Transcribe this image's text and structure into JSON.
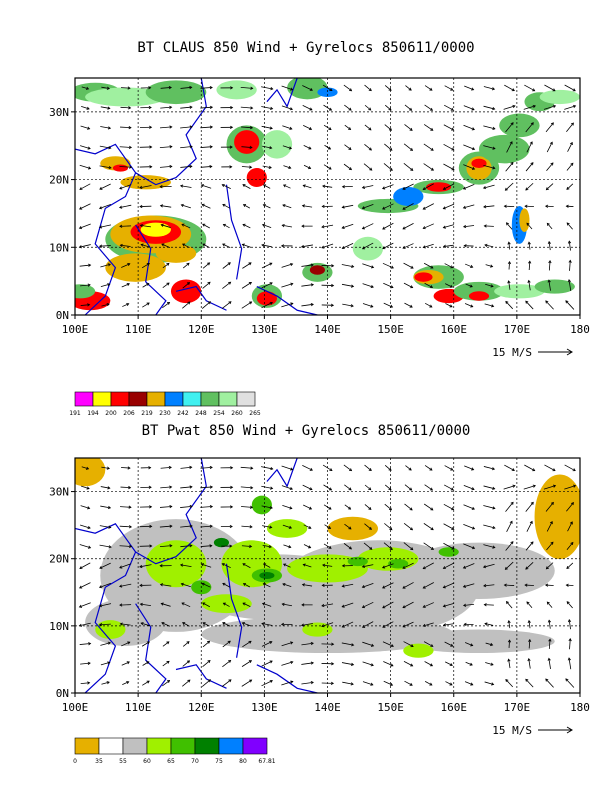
{
  "panels": [
    {
      "title": "BT CLAUS 850 Wind + Gyrelocs 850611/0000",
      "lon_ticks": [
        "100E",
        "110E",
        "120E",
        "130E",
        "140E",
        "150E",
        "160E",
        "170E",
        "180"
      ],
      "lat_ticks": [
        "0N",
        "10N",
        "20N",
        "30N"
      ],
      "reference_vector": "15 M/S",
      "legend": {
        "labels": [
          "191",
          "194",
          "200",
          "206",
          "219",
          "230",
          "242",
          "248",
          "254",
          "260",
          "265"
        ],
        "colors": [
          "#ff00ff",
          "#ffff00",
          "#ff0000",
          "#990000",
          "#e6b000",
          "#0080ff",
          "#40f0f0",
          "#60c060",
          "#a0f0a0",
          "#e0e0e0"
        ]
      }
    },
    {
      "title": "BT Pwat 850 Wind + Gyrelocs 850611/0000",
      "lon_ticks": [
        "100E",
        "110E",
        "120E",
        "130E",
        "140E",
        "150E",
        "160E",
        "170E",
        "180"
      ],
      "lat_ticks": [
        "0N",
        "10N",
        "20N",
        "30N"
      ],
      "reference_vector": "15 M/S",
      "legend": {
        "labels": [
          "0",
          "35",
          "55",
          "60",
          "65",
          "70",
          "75",
          "80",
          "67.81"
        ],
        "colors": [
          "#e6b000",
          "#ffffff",
          "#c0c0c0",
          "#a0f000",
          "#40c000",
          "#008000",
          "#0080ff",
          "#8000ff"
        ]
      }
    }
  ]
}
